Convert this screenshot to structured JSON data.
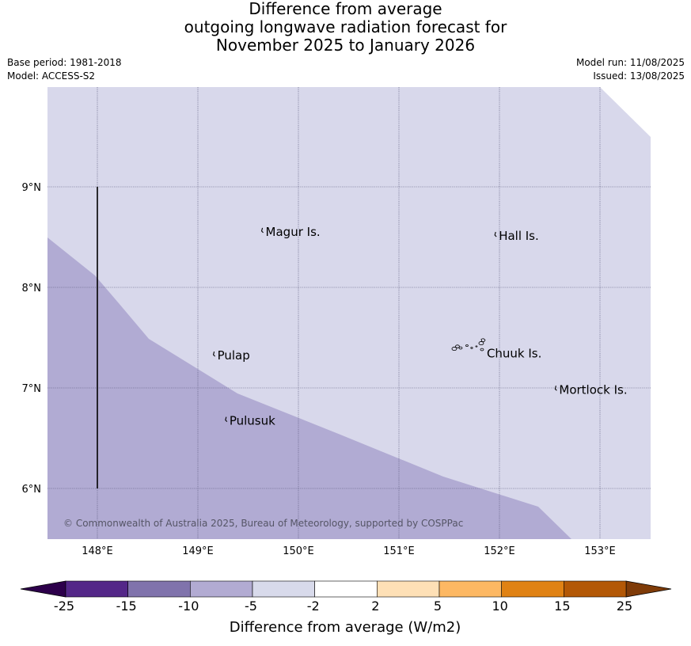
{
  "title": {
    "line1": "Difference from average",
    "line2": "outgoing longwave radiation forecast for",
    "line3": "November 2025 to January 2026"
  },
  "meta": {
    "base_period": "Base period: 1981-2018",
    "model": "Model: ACCESS-S2",
    "model_run": "Model run: 11/08/2025",
    "issued": "Issued: 13/08/2025"
  },
  "map": {
    "lon_range": [
      147.5,
      153.5
    ],
    "lat_range": [
      5.5,
      10.0
    ],
    "lon_ticks": [
      148,
      149,
      150,
      151,
      152,
      153
    ],
    "lon_tick_labels": [
      "148°E",
      "149°E",
      "150°E",
      "151°E",
      "152°E",
      "153°E"
    ],
    "lat_ticks": [
      6,
      7,
      8,
      9
    ],
    "lat_tick_labels": [
      "6°N",
      "7°N",
      "8°N",
      "9°N"
    ],
    "gridlines": true,
    "colors": {
      "light_band": "#d8d8eb",
      "mid_band": "#b1abd3",
      "grid": "#555577",
      "marker_line": "#000000"
    },
    "places": [
      {
        "name": "Magur Is.",
        "lon": 149.65,
        "lat": 8.56
      },
      {
        "name": "Hall Is.",
        "lon": 151.97,
        "lat": 8.52
      },
      {
        "name": "Pulap",
        "lon": 149.17,
        "lat": 7.33
      },
      {
        "name": "Chuuk Is.",
        "lon": 151.85,
        "lat": 7.35
      },
      {
        "name": "Mortlock Is.",
        "lon": 152.57,
        "lat": 6.99
      },
      {
        "name": "Pulusuk",
        "lon": 149.29,
        "lat": 6.68
      }
    ],
    "copyright": "© Commonwealth of Australia 2025, Bureau of Meteorology, supported by COSPPac"
  },
  "colorbar": {
    "ticks": [
      "-25",
      "-15",
      "-10",
      "-5",
      "-2",
      "2",
      "5",
      "10",
      "15",
      "25"
    ],
    "colors": [
      "#542788",
      "#8073ac",
      "#b2abd2",
      "#d8daeb",
      "#ffffff",
      "#fee0b6",
      "#fdb863",
      "#e08214",
      "#b35806"
    ],
    "under_color": "#2d004b",
    "over_color": "#7f3b08",
    "label": "Difference from average (W/m2)"
  }
}
